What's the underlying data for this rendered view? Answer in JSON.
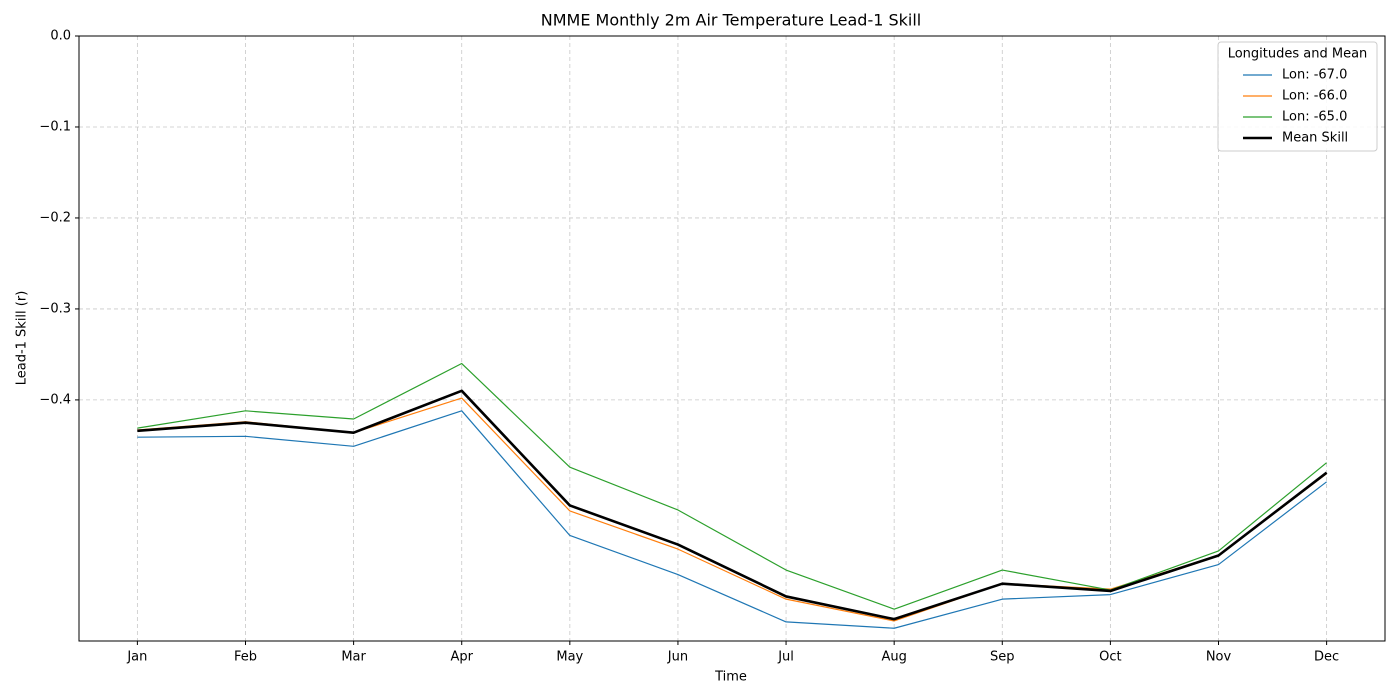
{
  "chart_data": {
    "type": "line",
    "title": "NMME Monthly 2m Air Temperature Lead-1 Skill",
    "xlabel": "Time",
    "ylabel": "Lead-1 Skill (r)",
    "categories": [
      "Jan",
      "Feb",
      "Mar",
      "Apr",
      "May",
      "Jun",
      "Jul",
      "Aug",
      "Sep",
      "Oct",
      "Nov",
      "Dec"
    ],
    "series": [
      {
        "name": "Lon: -67.0",
        "color": "#1f77b4",
        "linewidth": 1.2,
        "values": [
          -0.441,
          -0.44,
          -0.451,
          -0.412,
          -0.549,
          -0.592,
          -0.644,
          -0.651,
          -0.619,
          -0.614,
          -0.581,
          -0.49
        ]
      },
      {
        "name": "Lon: -66.0",
        "color": "#ff7f0e",
        "linewidth": 1.2,
        "values": [
          -0.433,
          -0.424,
          -0.436,
          -0.398,
          -0.522,
          -0.564,
          -0.619,
          -0.643,
          -0.602,
          -0.608,
          -0.571,
          -0.481
        ]
      },
      {
        "name": "Lon: -65.0",
        "color": "#2ca02c",
        "linewidth": 1.2,
        "values": [
          -0.431,
          -0.412,
          -0.421,
          -0.36,
          -0.474,
          -0.521,
          -0.587,
          -0.63,
          -0.587,
          -0.609,
          -0.566,
          -0.469
        ]
      },
      {
        "name": "Mean Skill",
        "color": "#000000",
        "linewidth": 2.6,
        "values": [
          -0.434,
          -0.425,
          -0.436,
          -0.39,
          -0.516,
          -0.559,
          -0.616,
          -0.641,
          -0.602,
          -0.61,
          -0.571,
          -0.48
        ]
      }
    ],
    "ylim": [
      -0.665,
      0
    ],
    "yticks": [
      {
        "value": 0,
        "label": "0.0"
      },
      {
        "value": -0.1,
        "label": "−0.1"
      },
      {
        "value": -0.2,
        "label": "−0.2"
      },
      {
        "value": -0.3,
        "label": "−0.3"
      },
      {
        "value": -0.4,
        "label": "−0.4"
      }
    ],
    "grid": true,
    "legend_title": "Longitudes and Mean",
    "legend_loc": "upper right"
  }
}
